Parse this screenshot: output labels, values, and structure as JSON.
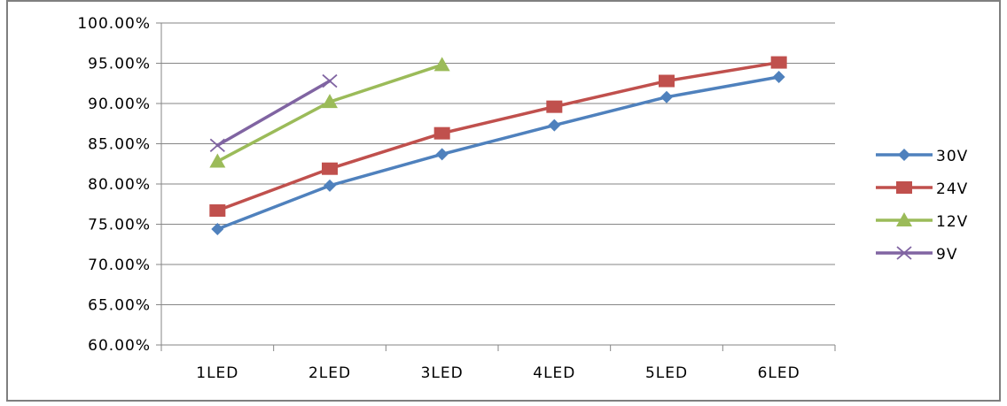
{
  "chart_data": {
    "type": "line",
    "categories": [
      "1LED",
      "2LED",
      "3LED",
      "4LED",
      "5LED",
      "6LED"
    ],
    "y_ticks": [
      "60.00%",
      "65.00%",
      "70.00%",
      "75.00%",
      "80.00%",
      "85.00%",
      "90.00%",
      "95.00%",
      "100.00%"
    ],
    "ylim": [
      60,
      100
    ],
    "y_unit": "%",
    "grid": true,
    "legend_position": "right",
    "series": [
      {
        "name": "30V",
        "color": "#4F81BD",
        "marker": "diamond",
        "values": [
          74.4,
          79.8,
          83.7,
          87.3,
          90.8,
          93.3
        ]
      },
      {
        "name": "24V",
        "color": "#C0504D",
        "marker": "square",
        "values": [
          76.7,
          81.9,
          86.3,
          89.6,
          92.8,
          95.1
        ]
      },
      {
        "name": "12V",
        "color": "#9BBB59",
        "marker": "triangle",
        "values": [
          82.8,
          90.2,
          94.8,
          null,
          null,
          null
        ]
      },
      {
        "name": "9V",
        "color": "#8064A2",
        "marker": "x",
        "values": [
          84.8,
          92.8,
          null,
          null,
          null,
          null
        ]
      }
    ]
  }
}
